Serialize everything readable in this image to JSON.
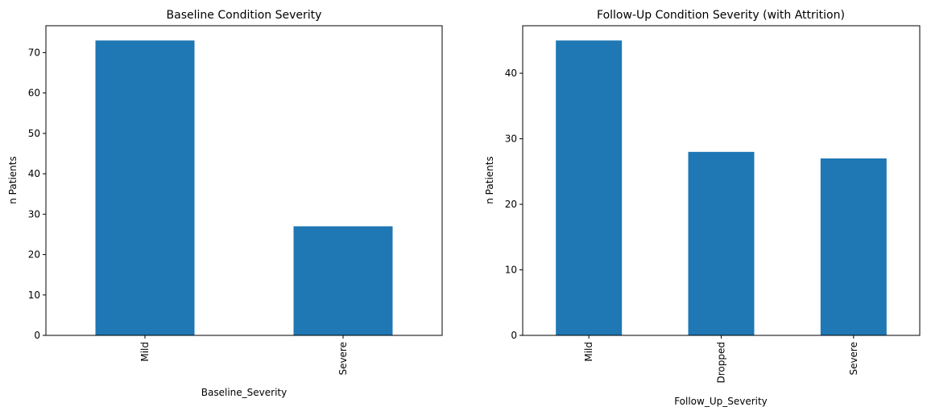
{
  "chart_data": [
    {
      "type": "bar",
      "title": "Baseline Condition Severity",
      "xlabel": "Baseline_Severity",
      "ylabel": "n Patients",
      "categories": [
        "Mild",
        "Severe"
      ],
      "values": [
        73,
        27
      ],
      "ylim": [
        0,
        76.65
      ],
      "yticks": [
        0,
        10,
        20,
        30,
        40,
        50,
        60,
        70
      ],
      "color": "#1f77b4",
      "grid": false,
      "legend": false
    },
    {
      "type": "bar",
      "title": "Follow-Up Condition Severity (with Attrition)",
      "xlabel": "Follow_Up_Severity",
      "ylabel": "n Patients",
      "categories": [
        "Mild",
        "Dropped",
        "Severe"
      ],
      "values": [
        45,
        28,
        27
      ],
      "ylim": [
        0,
        47.25
      ],
      "yticks": [
        0,
        10,
        20,
        30,
        40
      ],
      "color": "#1f77b4",
      "grid": false,
      "legend": false
    }
  ]
}
